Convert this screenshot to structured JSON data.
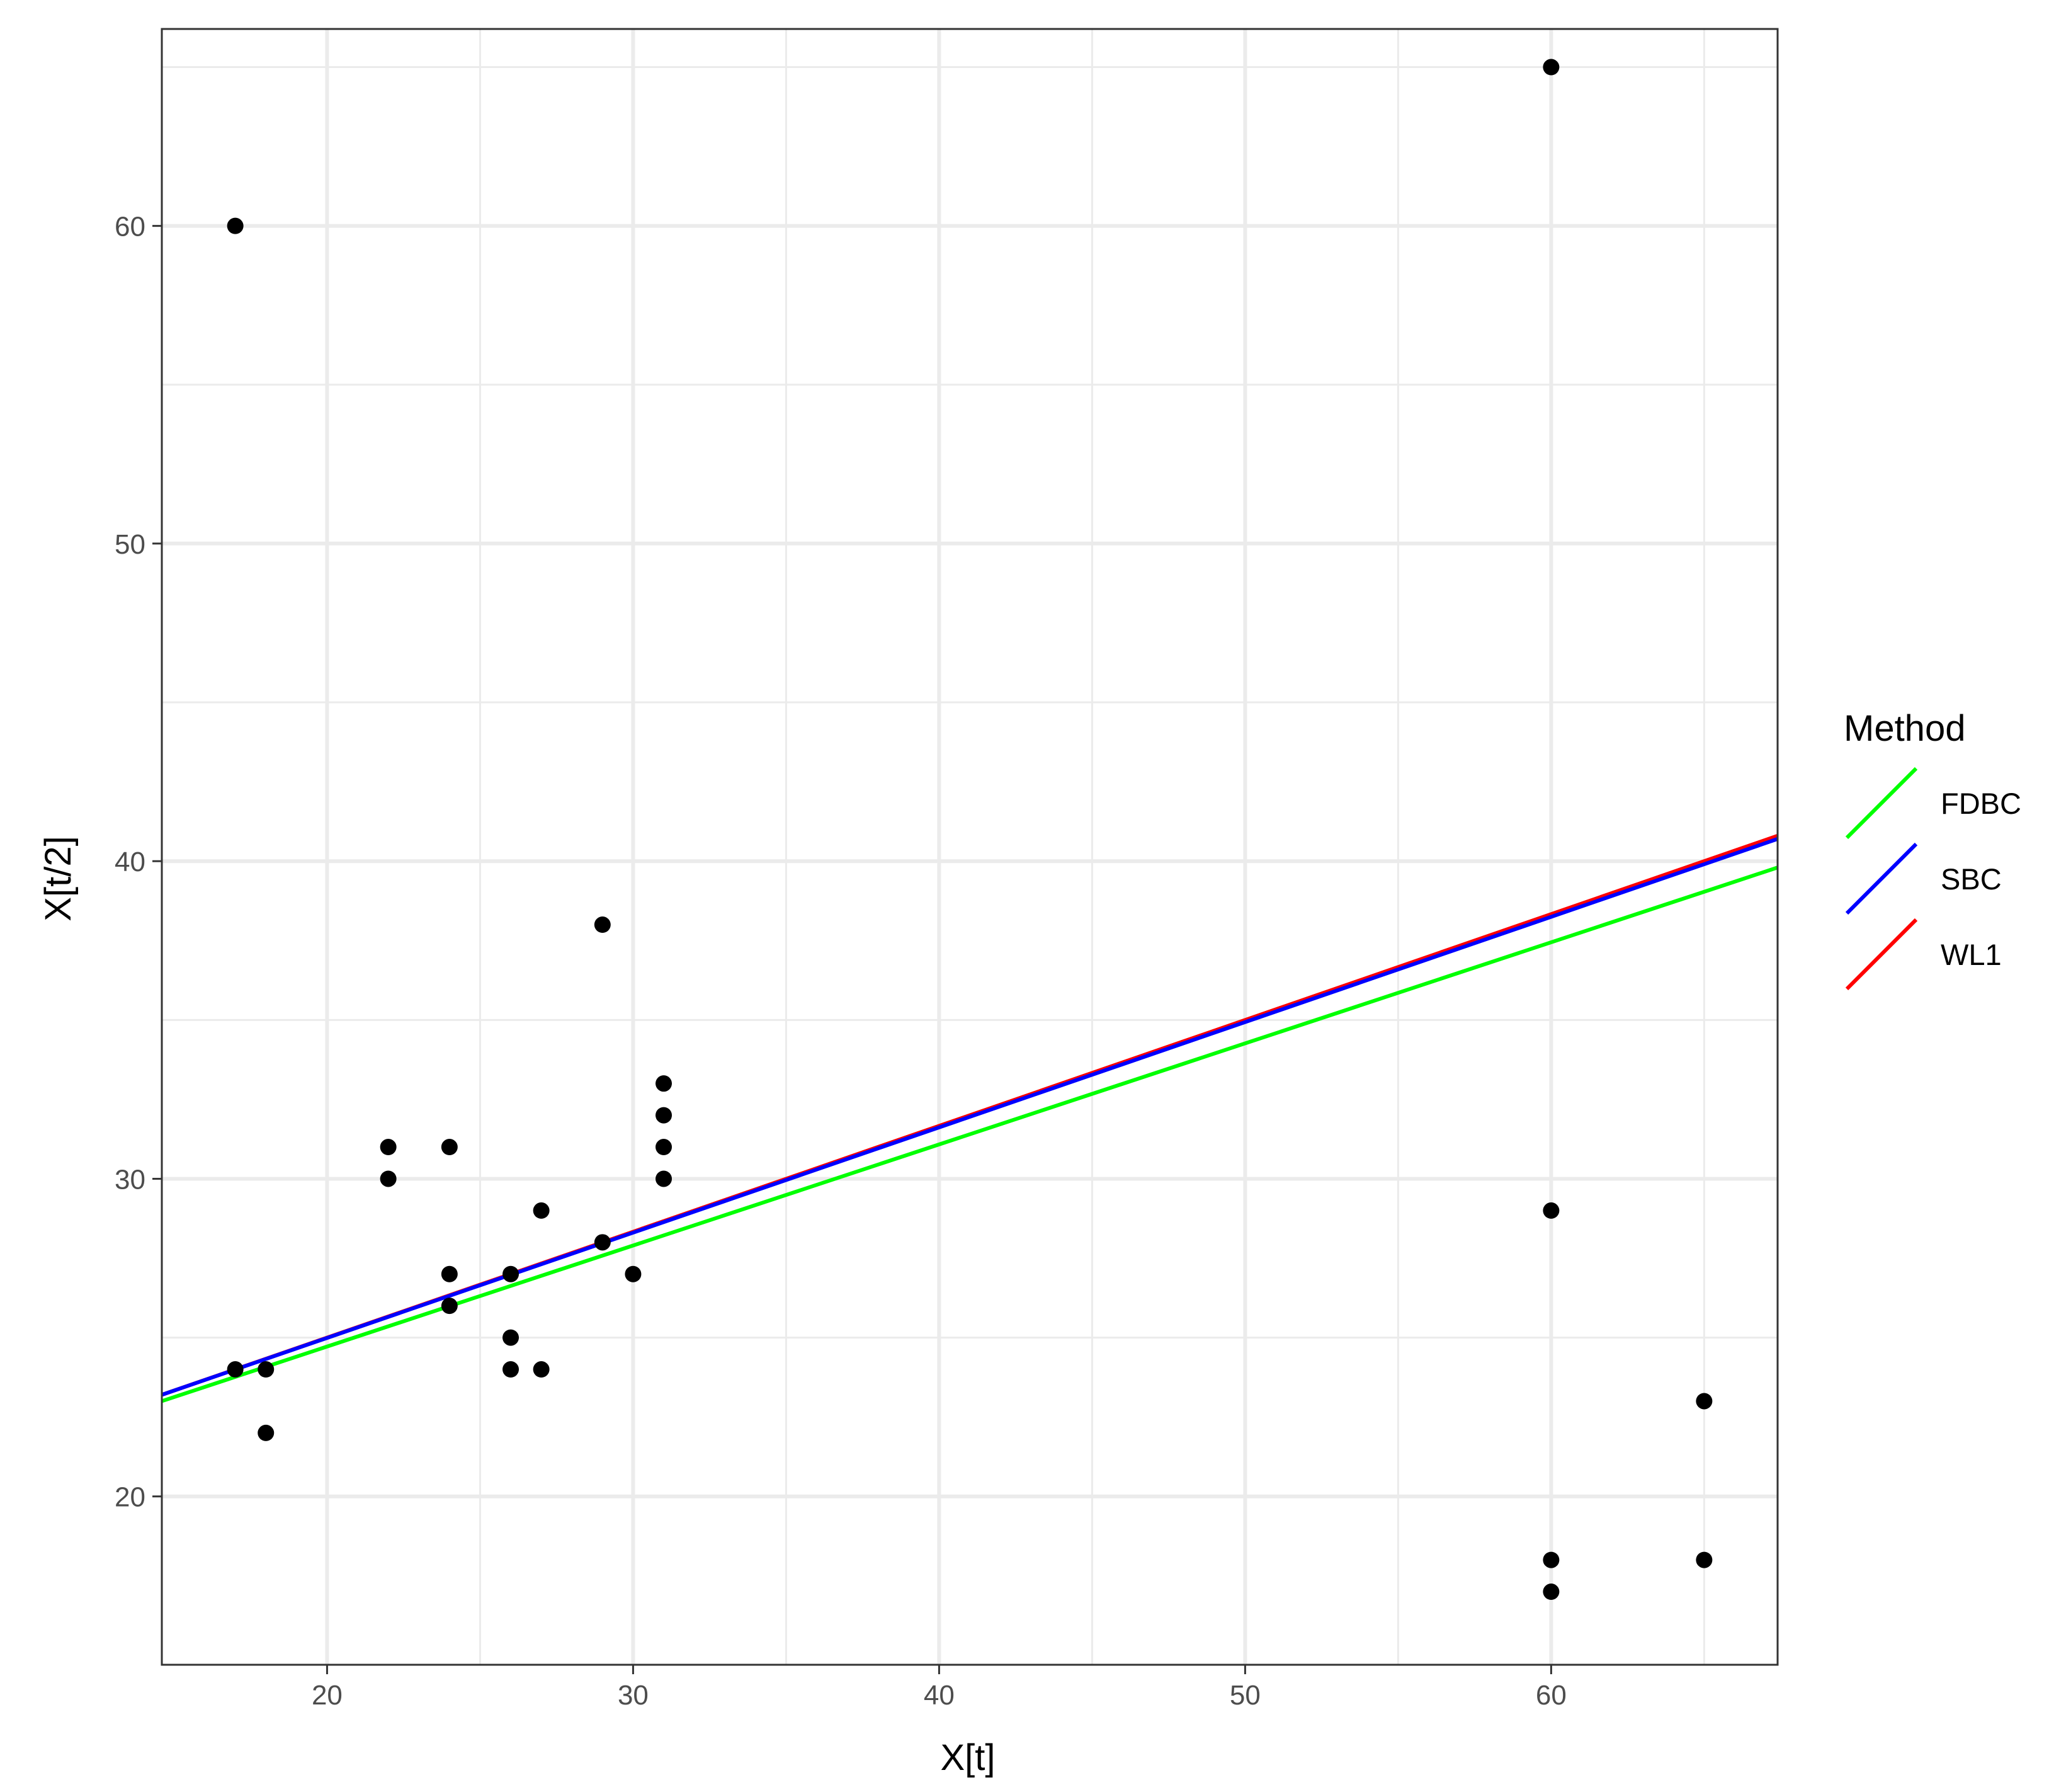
{
  "chart_data": {
    "type": "scatter",
    "xlabel": "X[t]",
    "ylabel": "X[t/2]",
    "xlim": [
      14.6,
      67.4
    ],
    "ylim": [
      14.7,
      66.2
    ],
    "x_ticks": [
      20,
      30,
      40,
      50,
      60
    ],
    "y_ticks": [
      20,
      30,
      40,
      50,
      60
    ],
    "x_minor": [
      25,
      35,
      45,
      55,
      65
    ],
    "y_minor": [
      25,
      35,
      45,
      55,
      65
    ],
    "grid": true,
    "points": [
      {
        "x": 17,
        "y": 60
      },
      {
        "x": 17,
        "y": 24
      },
      {
        "x": 18,
        "y": 24
      },
      {
        "x": 18,
        "y": 22
      },
      {
        "x": 22,
        "y": 31
      },
      {
        "x": 22,
        "y": 30
      },
      {
        "x": 24,
        "y": 31
      },
      {
        "x": 24,
        "y": 27
      },
      {
        "x": 24,
        "y": 26
      },
      {
        "x": 26,
        "y": 27
      },
      {
        "x": 26,
        "y": 25
      },
      {
        "x": 26,
        "y": 24
      },
      {
        "x": 27,
        "y": 29
      },
      {
        "x": 27,
        "y": 24
      },
      {
        "x": 29,
        "y": 38
      },
      {
        "x": 29,
        "y": 28
      },
      {
        "x": 30,
        "y": 27
      },
      {
        "x": 31,
        "y": 33
      },
      {
        "x": 31,
        "y": 32
      },
      {
        "x": 31,
        "y": 31
      },
      {
        "x": 31,
        "y": 30
      },
      {
        "x": 60,
        "y": 65
      },
      {
        "x": 60,
        "y": 29
      },
      {
        "x": 60,
        "y": 18
      },
      {
        "x": 60,
        "y": 17
      },
      {
        "x": 65,
        "y": 23
      },
      {
        "x": 65,
        "y": 18
      }
    ],
    "legend": {
      "title": "Method",
      "position": "right"
    },
    "lines": [
      {
        "name": "FDBC",
        "color": "#00ff00",
        "x": [
          14.6,
          67.4
        ],
        "y": [
          23.0,
          39.8
        ]
      },
      {
        "name": "WL1",
        "color": "#ff0000",
        "x": [
          14.6,
          67.4
        ],
        "y": [
          23.2,
          40.8
        ]
      },
      {
        "name": "SBC",
        "color": "#0000ff",
        "x": [
          14.6,
          67.4
        ],
        "y": [
          23.2,
          40.7
        ]
      }
    ],
    "legend_order": [
      "FDBC",
      "SBC",
      "WL1"
    ]
  }
}
